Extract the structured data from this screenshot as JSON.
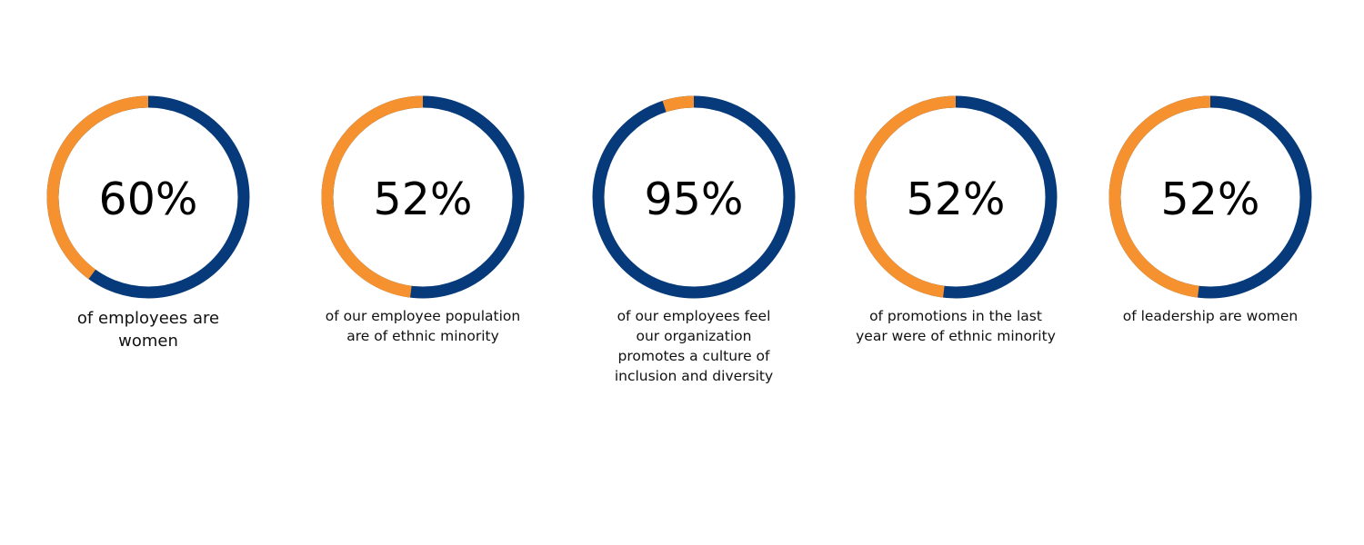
{
  "colors": {
    "primary": "#063a7a",
    "accent": "#f5922f"
  },
  "chart_data": [
    {
      "type": "donut",
      "value": 60,
      "label": "60%",
      "caption": "of employees are\nwomen",
      "highlighted_share": 40
    },
    {
      "type": "donut",
      "value": 52,
      "label": "52%",
      "caption": "of our employee population\nare of ethnic minority",
      "highlighted_share": 48
    },
    {
      "type": "donut",
      "value": 95,
      "label": "95%",
      "caption": "of our employees feel\nour organization\npromotes a culture of\ninclusion and diversity",
      "highlighted_share": 5
    },
    {
      "type": "donut",
      "value": 52,
      "label": "52%",
      "caption": "of promotions in the last\nyear were of ethnic minority",
      "highlighted_share": 48
    },
    {
      "type": "donut",
      "value": 52,
      "label": "52%",
      "caption": "of leadership are women",
      "highlighted_share": 48
    }
  ]
}
